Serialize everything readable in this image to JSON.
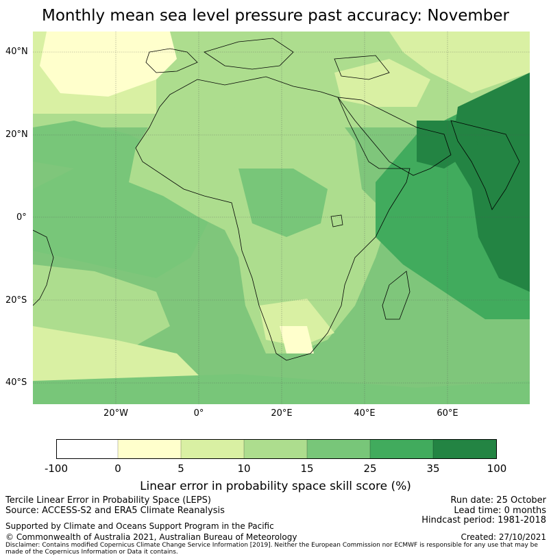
{
  "title": "Monthly mean sea level pressure past accuracy: November",
  "map": {
    "lat_labels": [
      "40°N",
      "20°N",
      "0°",
      "20°S",
      "40°S"
    ],
    "lon_labels": [
      "20°W",
      "0°",
      "20°E",
      "40°E",
      "60°E"
    ],
    "colors": {
      "ocean_base": "#7fc67b",
      "deep": "#238a47",
      "strong": "#41ab5d",
      "medium": "#addd8e",
      "light": "#d9f0a3",
      "pale": "#ffffcc",
      "coast": "#000000"
    }
  },
  "colorbar": {
    "ticks": [
      "-100",
      "0",
      "5",
      "10",
      "15",
      "25",
      "35",
      "100"
    ],
    "colors": [
      "#ffffff",
      "#ffffcc",
      "#d9f0a3",
      "#addd8e",
      "#78c679",
      "#41ab5d",
      "#238443"
    ],
    "label": "Linear error in probability space skill score (%)"
  },
  "info": {
    "left_line1": "Tercile Linear Error in Probability Space (LEPS)",
    "left_line2": "Source: ACCESS-S2 and ERA5 Climate Reanalysis",
    "right_line1": "Run date: 25 October",
    "right_line2": "Lead time: 0 months",
    "right_line3": "Hindcast period: 1981-2018",
    "supported": "Supported by Climate and Oceans Support Program in the Pacific",
    "copyright": "© Commonwealth of Australia 2021, Australian Bureau of Meteorology",
    "created": "Created: 27/10/2021",
    "disclaimer": "Disclaimer: Contains modified Copernicus Climate Change Service Information [2019]. Neither the European Commission nor ECMWF is responsible for any use that may be made of the Copernicus Information or Data it contains."
  }
}
